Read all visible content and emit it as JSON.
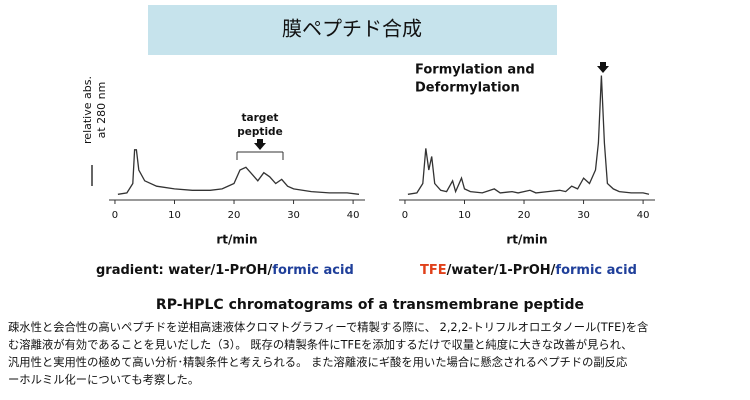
{
  "header": {
    "title": "膜ペプチド合成"
  },
  "chart_data": [
    {
      "type": "line",
      "y_label_lines": [
        "relative abs.",
        "at 280 nm"
      ],
      "x_label": "rt/min",
      "annotation_lines": [
        "target",
        "peptide"
      ],
      "xlim": [
        -1,
        42
      ],
      "xticks": [
        0,
        10,
        20,
        30,
        40
      ],
      "ylim": [
        0,
        100
      ],
      "color": "#333333",
      "x": [
        0.5,
        2,
        3,
        3.3,
        3.6,
        4,
        5,
        7,
        10,
        13,
        16,
        18,
        20,
        21,
        22,
        23,
        24,
        25,
        26,
        27,
        28,
        29,
        30,
        33,
        36,
        39,
        41
      ],
      "values": [
        2,
        3,
        10,
        35,
        35,
        20,
        12,
        8,
        6,
        5,
        5,
        6,
        10,
        20,
        22,
        17,
        12,
        18,
        15,
        10,
        13,
        8,
        6,
        4,
        3,
        3,
        2
      ],
      "caption_parts": [
        {
          "text": "gradient: water/1-PrOH/",
          "color": "#111111"
        },
        {
          "text": "formic acid",
          "color": "#1f3f9a"
        }
      ]
    },
    {
      "type": "line",
      "x_label": "rt/min",
      "annotation_lines": [
        "Formylation and",
        "Deformylation"
      ],
      "annotation_color": "#1f3f9a",
      "xlim": [
        -1,
        42
      ],
      "xticks": [
        0,
        10,
        20,
        30,
        40
      ],
      "ylim": [
        0,
        100
      ],
      "color": "#333333",
      "x": [
        0.5,
        2,
        3,
        3.5,
        4,
        4.5,
        5,
        6,
        7,
        8,
        8.5,
        9.5,
        10,
        11,
        13,
        15,
        16,
        18,
        19,
        21,
        22,
        24,
        26,
        27,
        28,
        29,
        30,
        31,
        32,
        32.5,
        33,
        33.5,
        34,
        35,
        36,
        38,
        40,
        41
      ],
      "values": [
        2,
        3,
        10,
        36,
        20,
        30,
        10,
        5,
        4,
        12,
        4,
        14,
        6,
        4,
        3,
        6,
        3,
        4,
        3,
        5,
        3,
        4,
        5,
        4,
        8,
        6,
        14,
        10,
        20,
        40,
        90,
        40,
        10,
        6,
        4,
        3,
        3,
        2
      ],
      "caption_parts": [
        {
          "text": "TFE",
          "color": "#e0401a"
        },
        {
          "text": "/water/1-PrOH/",
          "color": "#111111"
        },
        {
          "text": "formic acid",
          "color": "#1f3f9a"
        }
      ]
    }
  ],
  "figure_caption": "RP-HPLC chromatograms of a transmembrane peptide",
  "paragraph": {
    "lines": [
      "疎水性と会合性の高いペプチドを逆相高速液体クロマトグラフィーで精製する際に、 2,2,2-トリフルオロエタノール(TFE)を含",
      "む溶離液が有効であることを見いだした（3）。 既存の精製条件にTFEを添加するだけで収量と純度に大きな改善が見られ、",
      "汎用性と実用性の極めて高い分析･精製条件と考えられる。 また溶離液にギ酸を用いた場合に懸念されるペプチドの副反応",
      "ーホルミル化ーについても考察した。"
    ]
  }
}
